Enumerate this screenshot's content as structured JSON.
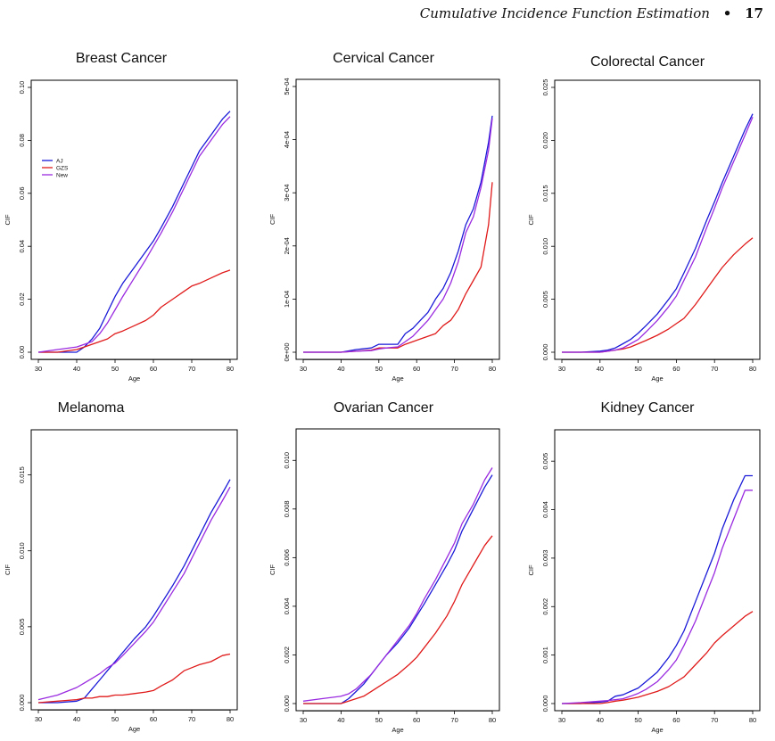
{
  "page": {
    "header_title": "Cumulative Incidence Function Estimation",
    "header_sep": "•",
    "page_number": "17"
  },
  "colors": {
    "AJ": "#1a1ad8",
    "GZS": "#e01a1a",
    "New": "#9a2be0"
  },
  "chart_data": [
    {
      "type": "line",
      "title": "Breast Cancer",
      "xlabel": "Age",
      "ylabel": "CIF",
      "xlim": [
        30,
        80
      ],
      "ylim": [
        0,
        0.1
      ],
      "xticks": [
        30,
        40,
        50,
        60,
        70,
        80
      ],
      "yticks": [
        0,
        0.02,
        0.04,
        0.06,
        0.08,
        0.1
      ],
      "ytick_labels": [
        "0.00",
        "0.02",
        "0.04",
        "0.06",
        "0.08",
        "0.10"
      ],
      "legend": {
        "position": "top-left",
        "entries": [
          "AJ",
          "GZS",
          "New"
        ]
      },
      "x": [
        30,
        35,
        40,
        42,
        44,
        46,
        48,
        50,
        52,
        55,
        58,
        60,
        62,
        65,
        68,
        70,
        72,
        75,
        78,
        80
      ],
      "series": [
        {
          "name": "AJ",
          "values": [
            0,
            0,
            0,
            0.002,
            0.005,
            0.009,
            0.015,
            0.021,
            0.026,
            0.032,
            0.038,
            0.042,
            0.047,
            0.055,
            0.064,
            0.07,
            0.076,
            0.082,
            0.088,
            0.091
          ]
        },
        {
          "name": "GZS",
          "values": [
            0,
            0,
            0.001,
            0.002,
            0.003,
            0.004,
            0.005,
            0.007,
            0.008,
            0.01,
            0.012,
            0.014,
            0.017,
            0.02,
            0.023,
            0.025,
            0.026,
            0.028,
            0.03,
            0.031
          ]
        },
        {
          "name": "New",
          "values": [
            0,
            0.001,
            0.002,
            0.003,
            0.004,
            0.007,
            0.011,
            0.016,
            0.021,
            0.028,
            0.035,
            0.04,
            0.045,
            0.053,
            0.062,
            0.068,
            0.074,
            0.08,
            0.086,
            0.089
          ]
        }
      ]
    },
    {
      "type": "line",
      "title": "Cervical Cancer",
      "xlabel": "Age",
      "ylabel": "CIF",
      "xlim": [
        30,
        80
      ],
      "ylim": [
        0,
        0.0005
      ],
      "xticks": [
        30,
        40,
        50,
        60,
        70,
        80
      ],
      "yticks": [
        0,
        0.0001,
        0.0002,
        0.0003,
        0.0004,
        0.0005
      ],
      "ytick_labels": [
        "0e+00",
        "1e-04",
        "2e-04",
        "3e-04",
        "4e-04",
        "5e-04"
      ],
      "x": [
        30,
        40,
        44,
        48,
        50,
        52,
        55,
        57,
        59,
        61,
        63,
        65,
        67,
        69,
        71,
        73,
        75,
        77,
        79,
        80
      ],
      "series": [
        {
          "name": "AJ",
          "values": [
            0,
            0,
            5e-06,
            8e-06,
            1.5e-05,
            1.5e-05,
            1.5e-05,
            3.5e-05,
            4.5e-05,
            6e-05,
            7.5e-05,
            0.0001,
            0.00012,
            0.00015,
            0.00019,
            0.00024,
            0.00027,
            0.00032,
            0.000395,
            0.000445
          ]
        },
        {
          "name": "GZS",
          "values": [
            0,
            0,
            2e-06,
            4e-06,
            8e-06,
            8e-06,
            8e-06,
            1.5e-05,
            2e-05,
            2.5e-05,
            3e-05,
            3.5e-05,
            5e-05,
            6e-05,
            8e-05,
            0.00011,
            0.000135,
            0.00016,
            0.00024,
            0.00032
          ]
        },
        {
          "name": "New",
          "values": [
            0,
            0,
            2e-06,
            3e-06,
            6e-06,
            8e-06,
            1e-05,
            2e-05,
            3e-05,
            4.5e-05,
            6e-05,
            8e-05,
            0.0001,
            0.00013,
            0.00017,
            0.000225,
            0.000255,
            0.00031,
            0.00038,
            0.00044
          ]
        }
      ]
    },
    {
      "type": "line",
      "title": "Colorectal Cancer",
      "xlabel": "Age",
      "ylabel": "CIF",
      "xlim": [
        30,
        80
      ],
      "ylim": [
        0,
        0.025
      ],
      "xticks": [
        30,
        40,
        50,
        60,
        70,
        80
      ],
      "yticks": [
        0,
        0.005,
        0.01,
        0.015,
        0.02,
        0.025
      ],
      "ytick_labels": [
        "0.000",
        "0.005",
        "0.010",
        "0.015",
        "0.020",
        "0.025"
      ],
      "x": [
        30,
        35,
        40,
        42,
        44,
        46,
        48,
        50,
        52,
        55,
        58,
        60,
        62,
        65,
        68,
        70,
        72,
        75,
        78,
        80
      ],
      "series": [
        {
          "name": "AJ",
          "values": [
            0,
            0,
            0.0001,
            0.0002,
            0.0004,
            0.0008,
            0.0012,
            0.0018,
            0.0025,
            0.0036,
            0.005,
            0.006,
            0.0075,
            0.0098,
            0.0125,
            0.0142,
            0.016,
            0.0185,
            0.021,
            0.0225
          ]
        },
        {
          "name": "GZS",
          "values": [
            0,
            0,
            0,
            0.0001,
            0.0002,
            0.0003,
            0.0005,
            0.0008,
            0.0011,
            0.0016,
            0.0022,
            0.0027,
            0.0032,
            0.0045,
            0.006,
            0.007,
            0.008,
            0.0092,
            0.0102,
            0.0108
          ]
        },
        {
          "name": "New",
          "values": [
            0,
            0,
            0,
            0.0001,
            0.0002,
            0.0004,
            0.0008,
            0.0012,
            0.0019,
            0.003,
            0.0043,
            0.0053,
            0.0068,
            0.009,
            0.0118,
            0.0136,
            0.0155,
            0.018,
            0.0205,
            0.0222
          ]
        }
      ]
    },
    {
      "type": "line",
      "title": "Melanoma",
      "xlabel": "Age",
      "ylabel": "CIF",
      "xlim": [
        30,
        80
      ],
      "ylim": [
        0,
        0.0175
      ],
      "xticks": [
        30,
        40,
        50,
        60,
        70,
        80
      ],
      "yticks": [
        0,
        0.005,
        0.01,
        0.015
      ],
      "ytick_labels": [
        "0.000",
        "0.005",
        "0.010",
        "0.015"
      ],
      "x": [
        30,
        35,
        40,
        42,
        44,
        46,
        48,
        50,
        52,
        55,
        58,
        60,
        62,
        65,
        68,
        70,
        72,
        75,
        78,
        80
      ],
      "series": [
        {
          "name": "AJ",
          "values": [
            0,
            0,
            0.0001,
            0.0003,
            0.0009,
            0.0015,
            0.0021,
            0.0027,
            0.0033,
            0.0042,
            0.005,
            0.0057,
            0.0065,
            0.0077,
            0.009,
            0.01,
            0.011,
            0.0125,
            0.0138,
            0.0147
          ]
        },
        {
          "name": "GZS",
          "values": [
            0,
            0.0001,
            0.0002,
            0.0003,
            0.0003,
            0.0004,
            0.0004,
            0.0005,
            0.0005,
            0.0006,
            0.0007,
            0.0008,
            0.0011,
            0.0015,
            0.0021,
            0.0023,
            0.0025,
            0.0027,
            0.0031,
            0.0032
          ]
        },
        {
          "name": "New",
          "values": [
            0.0002,
            0.0005,
            0.001,
            0.0013,
            0.0016,
            0.0019,
            0.0023,
            0.0026,
            0.0031,
            0.0039,
            0.0047,
            0.0053,
            0.0061,
            0.0073,
            0.0085,
            0.0095,
            0.0105,
            0.012,
            0.0133,
            0.0142
          ]
        }
      ]
    },
    {
      "type": "line",
      "title": "Ovarian Cancer",
      "xlabel": "Age",
      "ylabel": "CIF",
      "xlim": [
        30,
        80
      ],
      "ylim": [
        0,
        0.011
      ],
      "xticks": [
        30,
        40,
        50,
        60,
        70,
        80
      ],
      "yticks": [
        0,
        0.002,
        0.004,
        0.006,
        0.008,
        0.01
      ],
      "ytick_labels": [
        "0.000",
        "0.002",
        "0.004",
        "0.006",
        "0.008",
        "0.010"
      ],
      "x": [
        30,
        35,
        40,
        42,
        44,
        46,
        48,
        50,
        52,
        55,
        58,
        60,
        62,
        65,
        68,
        70,
        72,
        75,
        78,
        80
      ],
      "series": [
        {
          "name": "AJ",
          "values": [
            0,
            0,
            0,
            0.0002,
            0.0005,
            0.0008,
            0.0012,
            0.0016,
            0.002,
            0.0025,
            0.0031,
            0.0036,
            0.0041,
            0.0049,
            0.0057,
            0.0063,
            0.0071,
            0.008,
            0.0089,
            0.0094
          ]
        },
        {
          "name": "GZS",
          "values": [
            0,
            0,
            0,
            0.0001,
            0.0002,
            0.0003,
            0.0005,
            0.0007,
            0.0009,
            0.0012,
            0.0016,
            0.0019,
            0.0023,
            0.0029,
            0.0036,
            0.0042,
            0.0049,
            0.0057,
            0.0065,
            0.0069
          ]
        },
        {
          "name": "New",
          "values": [
            0.0001,
            0.0002,
            0.0003,
            0.0004,
            0.0006,
            0.0009,
            0.0012,
            0.0016,
            0.002,
            0.0026,
            0.0032,
            0.0037,
            0.0043,
            0.0051,
            0.006,
            0.0066,
            0.0074,
            0.0082,
            0.0092,
            0.0097
          ]
        }
      ]
    },
    {
      "type": "line",
      "title": "Kidney Cancer",
      "xlabel": "Age",
      "ylabel": "CIF",
      "xlim": [
        30,
        80
      ],
      "ylim": [
        0,
        0.0055
      ],
      "xticks": [
        30,
        40,
        50,
        60,
        70,
        80
      ],
      "yticks": [
        0,
        0.001,
        0.002,
        0.003,
        0.004,
        0.005
      ],
      "ytick_labels": [
        "0.000",
        "0.001",
        "0.002",
        "0.003",
        "0.004",
        "0.005"
      ],
      "x": [
        30,
        35,
        40,
        42,
        44,
        46,
        48,
        50,
        52,
        55,
        58,
        60,
        62,
        65,
        68,
        70,
        72,
        75,
        78,
        80
      ],
      "series": [
        {
          "name": "AJ",
          "values": [
            0,
            0,
            3e-05,
            5e-05,
            0.00015,
            0.00018,
            0.00025,
            0.00032,
            0.00045,
            0.00065,
            0.00095,
            0.0012,
            0.0015,
            0.0021,
            0.0027,
            0.0031,
            0.0036,
            0.0042,
            0.0047,
            0.0047
          ]
        },
        {
          "name": "GZS",
          "values": [
            0,
            0,
            0,
            2e-05,
            5e-05,
            7e-05,
            0.0001,
            0.00013,
            0.00018,
            0.00025,
            0.00035,
            0.00045,
            0.00055,
            0.0008,
            0.00105,
            0.00125,
            0.0014,
            0.0016,
            0.0018,
            0.0019
          ]
        },
        {
          "name": "New",
          "values": [
            0,
            2e-05,
            5e-05,
            6e-05,
            8e-05,
            0.0001,
            0.00015,
            0.00021,
            0.00029,
            0.00045,
            0.0007,
            0.0009,
            0.0012,
            0.0017,
            0.0023,
            0.0027,
            0.0032,
            0.0038,
            0.0044,
            0.0044
          ]
        }
      ]
    }
  ]
}
